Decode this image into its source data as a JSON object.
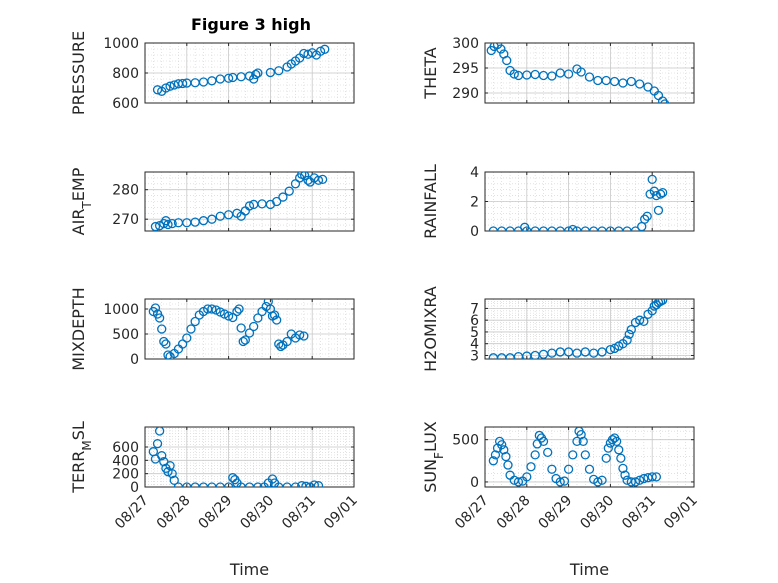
{
  "figure": {
    "title": "Figure 3 high",
    "marker_color": "#0072bd",
    "grid_color": "#d0d0d0",
    "axis_color": "#262626"
  },
  "chart_data": [
    {
      "type": "scatter",
      "ylabel": "PRESSURE",
      "xlim": [
        "08/27",
        "09/01"
      ],
      "ylim": [
        600,
        1000
      ],
      "yticks": [
        600,
        800,
        1000
      ],
      "xticks": [
        "08/27",
        "08/28",
        "08/29",
        "08/30",
        "08/31",
        "09/01"
      ],
      "show_xtick_labels": false,
      "points": [
        [
          0.3,
          688
        ],
        [
          0.4,
          678
        ],
        [
          0.5,
          700
        ],
        [
          0.6,
          712
        ],
        [
          0.7,
          720
        ],
        [
          0.8,
          728
        ],
        [
          0.9,
          730
        ],
        [
          1.0,
          733
        ],
        [
          1.2,
          735
        ],
        [
          1.4,
          740
        ],
        [
          1.6,
          748
        ],
        [
          1.8,
          760
        ],
        [
          2.0,
          765
        ],
        [
          2.1,
          770
        ],
        [
          2.3,
          775
        ],
        [
          2.5,
          780
        ],
        [
          2.6,
          760
        ],
        [
          2.65,
          790
        ],
        [
          2.7,
          800
        ],
        [
          3.0,
          803
        ],
        [
          3.2,
          815
        ],
        [
          3.4,
          840
        ],
        [
          3.5,
          860
        ],
        [
          3.6,
          880
        ],
        [
          3.7,
          900
        ],
        [
          3.8,
          930
        ],
        [
          3.9,
          925
        ],
        [
          4.0,
          935
        ],
        [
          4.1,
          920
        ],
        [
          4.2,
          945
        ],
        [
          4.3,
          958
        ]
      ]
    },
    {
      "type": "scatter",
      "ylabel": "THETA",
      "xlim": [
        "08/27",
        "09/01"
      ],
      "ylim": [
        288,
        300
      ],
      "yticks": [
        290,
        295,
        300
      ],
      "xticks": [
        "08/27",
        "08/28",
        "08/29",
        "08/30",
        "08/31",
        "09/01"
      ],
      "show_xtick_labels": false,
      "points": [
        [
          0.15,
          298.5
        ],
        [
          0.22,
          299.3
        ],
        [
          0.3,
          299.7
        ],
        [
          0.38,
          298.8
        ],
        [
          0.45,
          297.8
        ],
        [
          0.52,
          296.5
        ],
        [
          0.6,
          294.5
        ],
        [
          0.7,
          293.8
        ],
        [
          0.8,
          293.5
        ],
        [
          1.0,
          293.6
        ],
        [
          1.2,
          293.7
        ],
        [
          1.4,
          293.5
        ],
        [
          1.6,
          293.4
        ],
        [
          1.8,
          294.0
        ],
        [
          2.0,
          293.8
        ],
        [
          2.2,
          294.8
        ],
        [
          2.3,
          294.2
        ],
        [
          2.5,
          293.2
        ],
        [
          2.7,
          292.5
        ],
        [
          2.9,
          292.5
        ],
        [
          3.1,
          292.3
        ],
        [
          3.3,
          292.0
        ],
        [
          3.5,
          292.3
        ],
        [
          3.7,
          291.8
        ],
        [
          3.9,
          291.2
        ],
        [
          4.05,
          290.4
        ],
        [
          4.15,
          289.5
        ],
        [
          4.25,
          288.4
        ],
        [
          4.3,
          287.8
        ]
      ]
    },
    {
      "type": "scatter",
      "ylabel": "AIR_TEMP",
      "xlim": [
        "08/27",
        "09/01"
      ],
      "ylim": [
        266,
        286
      ],
      "yticks": [
        270,
        280
      ],
      "xticks": [
        "08/27",
        "08/28",
        "08/29",
        "08/30",
        "08/31",
        "09/01"
      ],
      "show_xtick_labels": false,
      "points": [
        [
          0.25,
          267.5
        ],
        [
          0.35,
          267.8
        ],
        [
          0.45,
          268.5
        ],
        [
          0.5,
          269.5
        ],
        [
          0.55,
          268.2
        ],
        [
          0.65,
          268.5
        ],
        [
          0.8,
          268.8
        ],
        [
          1.0,
          268.8
        ],
        [
          1.2,
          269.0
        ],
        [
          1.4,
          269.5
        ],
        [
          1.6,
          270.0
        ],
        [
          1.8,
          271.0
        ],
        [
          2.0,
          271.5
        ],
        [
          2.2,
          272.0
        ],
        [
          2.3,
          271.0
        ],
        [
          2.4,
          272.8
        ],
        [
          2.5,
          274.5
        ],
        [
          2.6,
          275.0
        ],
        [
          2.8,
          275.2
        ],
        [
          3.0,
          275.0
        ],
        [
          3.15,
          276.0
        ],
        [
          3.3,
          277.5
        ],
        [
          3.45,
          279.5
        ],
        [
          3.6,
          282.0
        ],
        [
          3.7,
          284.0
        ],
        [
          3.75,
          285.2
        ],
        [
          3.82,
          284.8
        ],
        [
          3.9,
          283.2
        ],
        [
          3.95,
          282.6
        ],
        [
          4.05,
          284.0
        ],
        [
          4.15,
          283.2
        ],
        [
          4.25,
          283.5
        ]
      ]
    },
    {
      "type": "scatter",
      "ylabel": "RAINFALL",
      "xlim": [
        "08/27",
        "09/01"
      ],
      "ylim": [
        0,
        4
      ],
      "yticks": [
        0,
        2,
        4
      ],
      "xticks": [
        "08/27",
        "08/28",
        "08/29",
        "08/30",
        "08/31",
        "09/01"
      ],
      "show_xtick_labels": false,
      "points": [
        [
          0.2,
          0
        ],
        [
          0.4,
          0
        ],
        [
          0.6,
          0
        ],
        [
          0.8,
          0
        ],
        [
          0.95,
          0.25
        ],
        [
          1.0,
          0
        ],
        [
          1.2,
          0
        ],
        [
          1.4,
          0
        ],
        [
          1.6,
          0
        ],
        [
          1.8,
          0
        ],
        [
          2.0,
          0
        ],
        [
          2.1,
          0.1
        ],
        [
          2.2,
          0
        ],
        [
          2.4,
          0
        ],
        [
          2.6,
          0
        ],
        [
          2.8,
          0
        ],
        [
          3.0,
          0
        ],
        [
          3.2,
          0
        ],
        [
          3.4,
          0
        ],
        [
          3.6,
          0
        ],
        [
          3.75,
          0.3
        ],
        [
          3.82,
          0.8
        ],
        [
          3.88,
          1.0
        ],
        [
          3.95,
          2.5
        ],
        [
          4.0,
          3.5
        ],
        [
          4.05,
          2.7
        ],
        [
          4.1,
          2.4
        ],
        [
          4.15,
          1.4
        ],
        [
          4.2,
          2.5
        ],
        [
          4.25,
          2.6
        ]
      ]
    },
    {
      "type": "scatter",
      "ylabel": "MIXDEPTH",
      "xlim": [
        "08/27",
        "09/01"
      ],
      "ylim": [
        0,
        1200
      ],
      "yticks": [
        0,
        500,
        1000
      ],
      "xticks": [
        "08/27",
        "08/28",
        "08/29",
        "08/30",
        "08/31",
        "09/01"
      ],
      "show_xtick_labels": false,
      "points": [
        [
          0.2,
          950
        ],
        [
          0.25,
          1020
        ],
        [
          0.3,
          900
        ],
        [
          0.35,
          820
        ],
        [
          0.4,
          600
        ],
        [
          0.45,
          350
        ],
        [
          0.5,
          300
        ],
        [
          0.55,
          80
        ],
        [
          0.6,
          50
        ],
        [
          0.7,
          110
        ],
        [
          0.8,
          200
        ],
        [
          0.9,
          300
        ],
        [
          1.0,
          420
        ],
        [
          1.1,
          600
        ],
        [
          1.2,
          750
        ],
        [
          1.3,
          880
        ],
        [
          1.4,
          950
        ],
        [
          1.5,
          1000
        ],
        [
          1.6,
          1000
        ],
        [
          1.7,
          980
        ],
        [
          1.8,
          940
        ],
        [
          1.9,
          900
        ],
        [
          2.0,
          860
        ],
        [
          2.1,
          830
        ],
        [
          2.2,
          950
        ],
        [
          2.25,
          1000
        ],
        [
          2.3,
          620
        ],
        [
          2.35,
          350
        ],
        [
          2.4,
          380
        ],
        [
          2.5,
          520
        ],
        [
          2.6,
          650
        ],
        [
          2.7,
          820
        ],
        [
          2.8,
          950
        ],
        [
          2.9,
          1050
        ],
        [
          2.95,
          1150
        ],
        [
          3.0,
          1000
        ],
        [
          3.05,
          860
        ],
        [
          3.1,
          880
        ],
        [
          3.15,
          780
        ],
        [
          3.2,
          300
        ],
        [
          3.25,
          250
        ],
        [
          3.3,
          280
        ],
        [
          3.4,
          350
        ],
        [
          3.5,
          500
        ],
        [
          3.6,
          420
        ],
        [
          3.7,
          480
        ],
        [
          3.8,
          460
        ]
      ]
    },
    {
      "type": "scatter",
      "ylabel": "H2OMIXRA",
      "xlim": [
        "08/27",
        "09/01"
      ],
      "ylim": [
        2.7,
        7.8
      ],
      "yticks": [
        3,
        4,
        5,
        6,
        7
      ],
      "xticks": [
        "08/27",
        "08/28",
        "08/29",
        "08/30",
        "08/31",
        "09/01"
      ],
      "show_xtick_labels": false,
      "points": [
        [
          0.2,
          2.8
        ],
        [
          0.4,
          2.8
        ],
        [
          0.6,
          2.8
        ],
        [
          0.8,
          2.9
        ],
        [
          1.0,
          2.95
        ],
        [
          1.2,
          3.0
        ],
        [
          1.4,
          3.1
        ],
        [
          1.6,
          3.2
        ],
        [
          1.8,
          3.3
        ],
        [
          2.0,
          3.3
        ],
        [
          2.2,
          3.2
        ],
        [
          2.4,
          3.3
        ],
        [
          2.6,
          3.2
        ],
        [
          2.8,
          3.3
        ],
        [
          3.0,
          3.5
        ],
        [
          3.1,
          3.6
        ],
        [
          3.2,
          3.8
        ],
        [
          3.3,
          4.0
        ],
        [
          3.4,
          4.3
        ],
        [
          3.45,
          4.8
        ],
        [
          3.5,
          5.2
        ],
        [
          3.6,
          5.8
        ],
        [
          3.7,
          6.0
        ],
        [
          3.8,
          5.9
        ],
        [
          3.9,
          6.5
        ],
        [
          4.0,
          6.8
        ],
        [
          4.05,
          7.2
        ],
        [
          4.1,
          7.3
        ],
        [
          4.15,
          7.5
        ],
        [
          4.2,
          7.6
        ],
        [
          4.25,
          7.7
        ]
      ]
    },
    {
      "type": "scatter",
      "ylabel": "TERR_MSL",
      "xlim": [
        "08/27",
        "09/01"
      ],
      "ylim": [
        0,
        900
      ],
      "yticks": [
        0,
        200,
        400,
        600
      ],
      "xticks": [
        "08/27",
        "08/28",
        "08/29",
        "08/30",
        "08/31",
        "09/01"
      ],
      "show_xtick_labels": true,
      "xlabel": "Time",
      "points": [
        [
          0.2,
          530
        ],
        [
          0.25,
          420
        ],
        [
          0.3,
          650
        ],
        [
          0.35,
          840
        ],
        [
          0.4,
          470
        ],
        [
          0.45,
          380
        ],
        [
          0.5,
          280
        ],
        [
          0.55,
          230
        ],
        [
          0.6,
          320
        ],
        [
          0.65,
          200
        ],
        [
          0.7,
          100
        ],
        [
          0.8,
          0
        ],
        [
          1.0,
          0
        ],
        [
          1.2,
          0
        ],
        [
          1.4,
          0
        ],
        [
          1.6,
          0
        ],
        [
          1.8,
          0
        ],
        [
          2.0,
          0
        ],
        [
          2.1,
          140
        ],
        [
          2.15,
          110
        ],
        [
          2.2,
          60
        ],
        [
          2.3,
          0
        ],
        [
          2.5,
          0
        ],
        [
          2.7,
          0
        ],
        [
          2.85,
          0
        ],
        [
          2.95,
          60
        ],
        [
          3.05,
          120
        ],
        [
          3.1,
          60
        ],
        [
          3.2,
          0
        ],
        [
          3.4,
          0
        ],
        [
          3.6,
          0
        ],
        [
          3.75,
          20
        ],
        [
          3.85,
          10
        ],
        [
          3.95,
          0
        ],
        [
          4.05,
          30
        ],
        [
          4.15,
          20
        ]
      ]
    },
    {
      "type": "scatter",
      "ylabel": "SUN_FLUX",
      "xlim": [
        "08/27",
        "09/01"
      ],
      "ylim": [
        -60,
        650
      ],
      "yticks": [
        0,
        500
      ],
      "xticks": [
        "08/27",
        "08/28",
        "08/29",
        "08/30",
        "08/31",
        "09/01"
      ],
      "show_xtick_labels": true,
      "xlabel": "Time",
      "points": [
        [
          0.2,
          250
        ],
        [
          0.25,
          320
        ],
        [
          0.3,
          400
        ],
        [
          0.35,
          480
        ],
        [
          0.4,
          440
        ],
        [
          0.45,
          380
        ],
        [
          0.5,
          300
        ],
        [
          0.55,
          200
        ],
        [
          0.6,
          80
        ],
        [
          0.7,
          20
        ],
        [
          0.8,
          0
        ],
        [
          0.9,
          10
        ],
        [
          1.0,
          60
        ],
        [
          1.1,
          180
        ],
        [
          1.2,
          320
        ],
        [
          1.25,
          450
        ],
        [
          1.3,
          550
        ],
        [
          1.35,
          520
        ],
        [
          1.4,
          480
        ],
        [
          1.5,
          350
        ],
        [
          1.6,
          150
        ],
        [
          1.7,
          40
        ],
        [
          1.8,
          0
        ],
        [
          1.9,
          10
        ],
        [
          2.0,
          150
        ],
        [
          2.1,
          320
        ],
        [
          2.2,
          480
        ],
        [
          2.25,
          600
        ],
        [
          2.3,
          560
        ],
        [
          2.35,
          480
        ],
        [
          2.4,
          320
        ],
        [
          2.5,
          150
        ],
        [
          2.6,
          30
        ],
        [
          2.7,
          0
        ],
        [
          2.8,
          20
        ],
        [
          2.9,
          280
        ],
        [
          2.95,
          400
        ],
        [
          3.0,
          460
        ],
        [
          3.05,
          500
        ],
        [
          3.1,
          520
        ],
        [
          3.15,
          480
        ],
        [
          3.2,
          380
        ],
        [
          3.25,
          280
        ],
        [
          3.3,
          160
        ],
        [
          3.35,
          80
        ],
        [
          3.4,
          20
        ],
        [
          3.5,
          0
        ],
        [
          3.6,
          0
        ],
        [
          3.7,
          20
        ],
        [
          3.8,
          40
        ],
        [
          3.9,
          50
        ],
        [
          4.0,
          60
        ],
        [
          4.1,
          60
        ]
      ]
    }
  ]
}
